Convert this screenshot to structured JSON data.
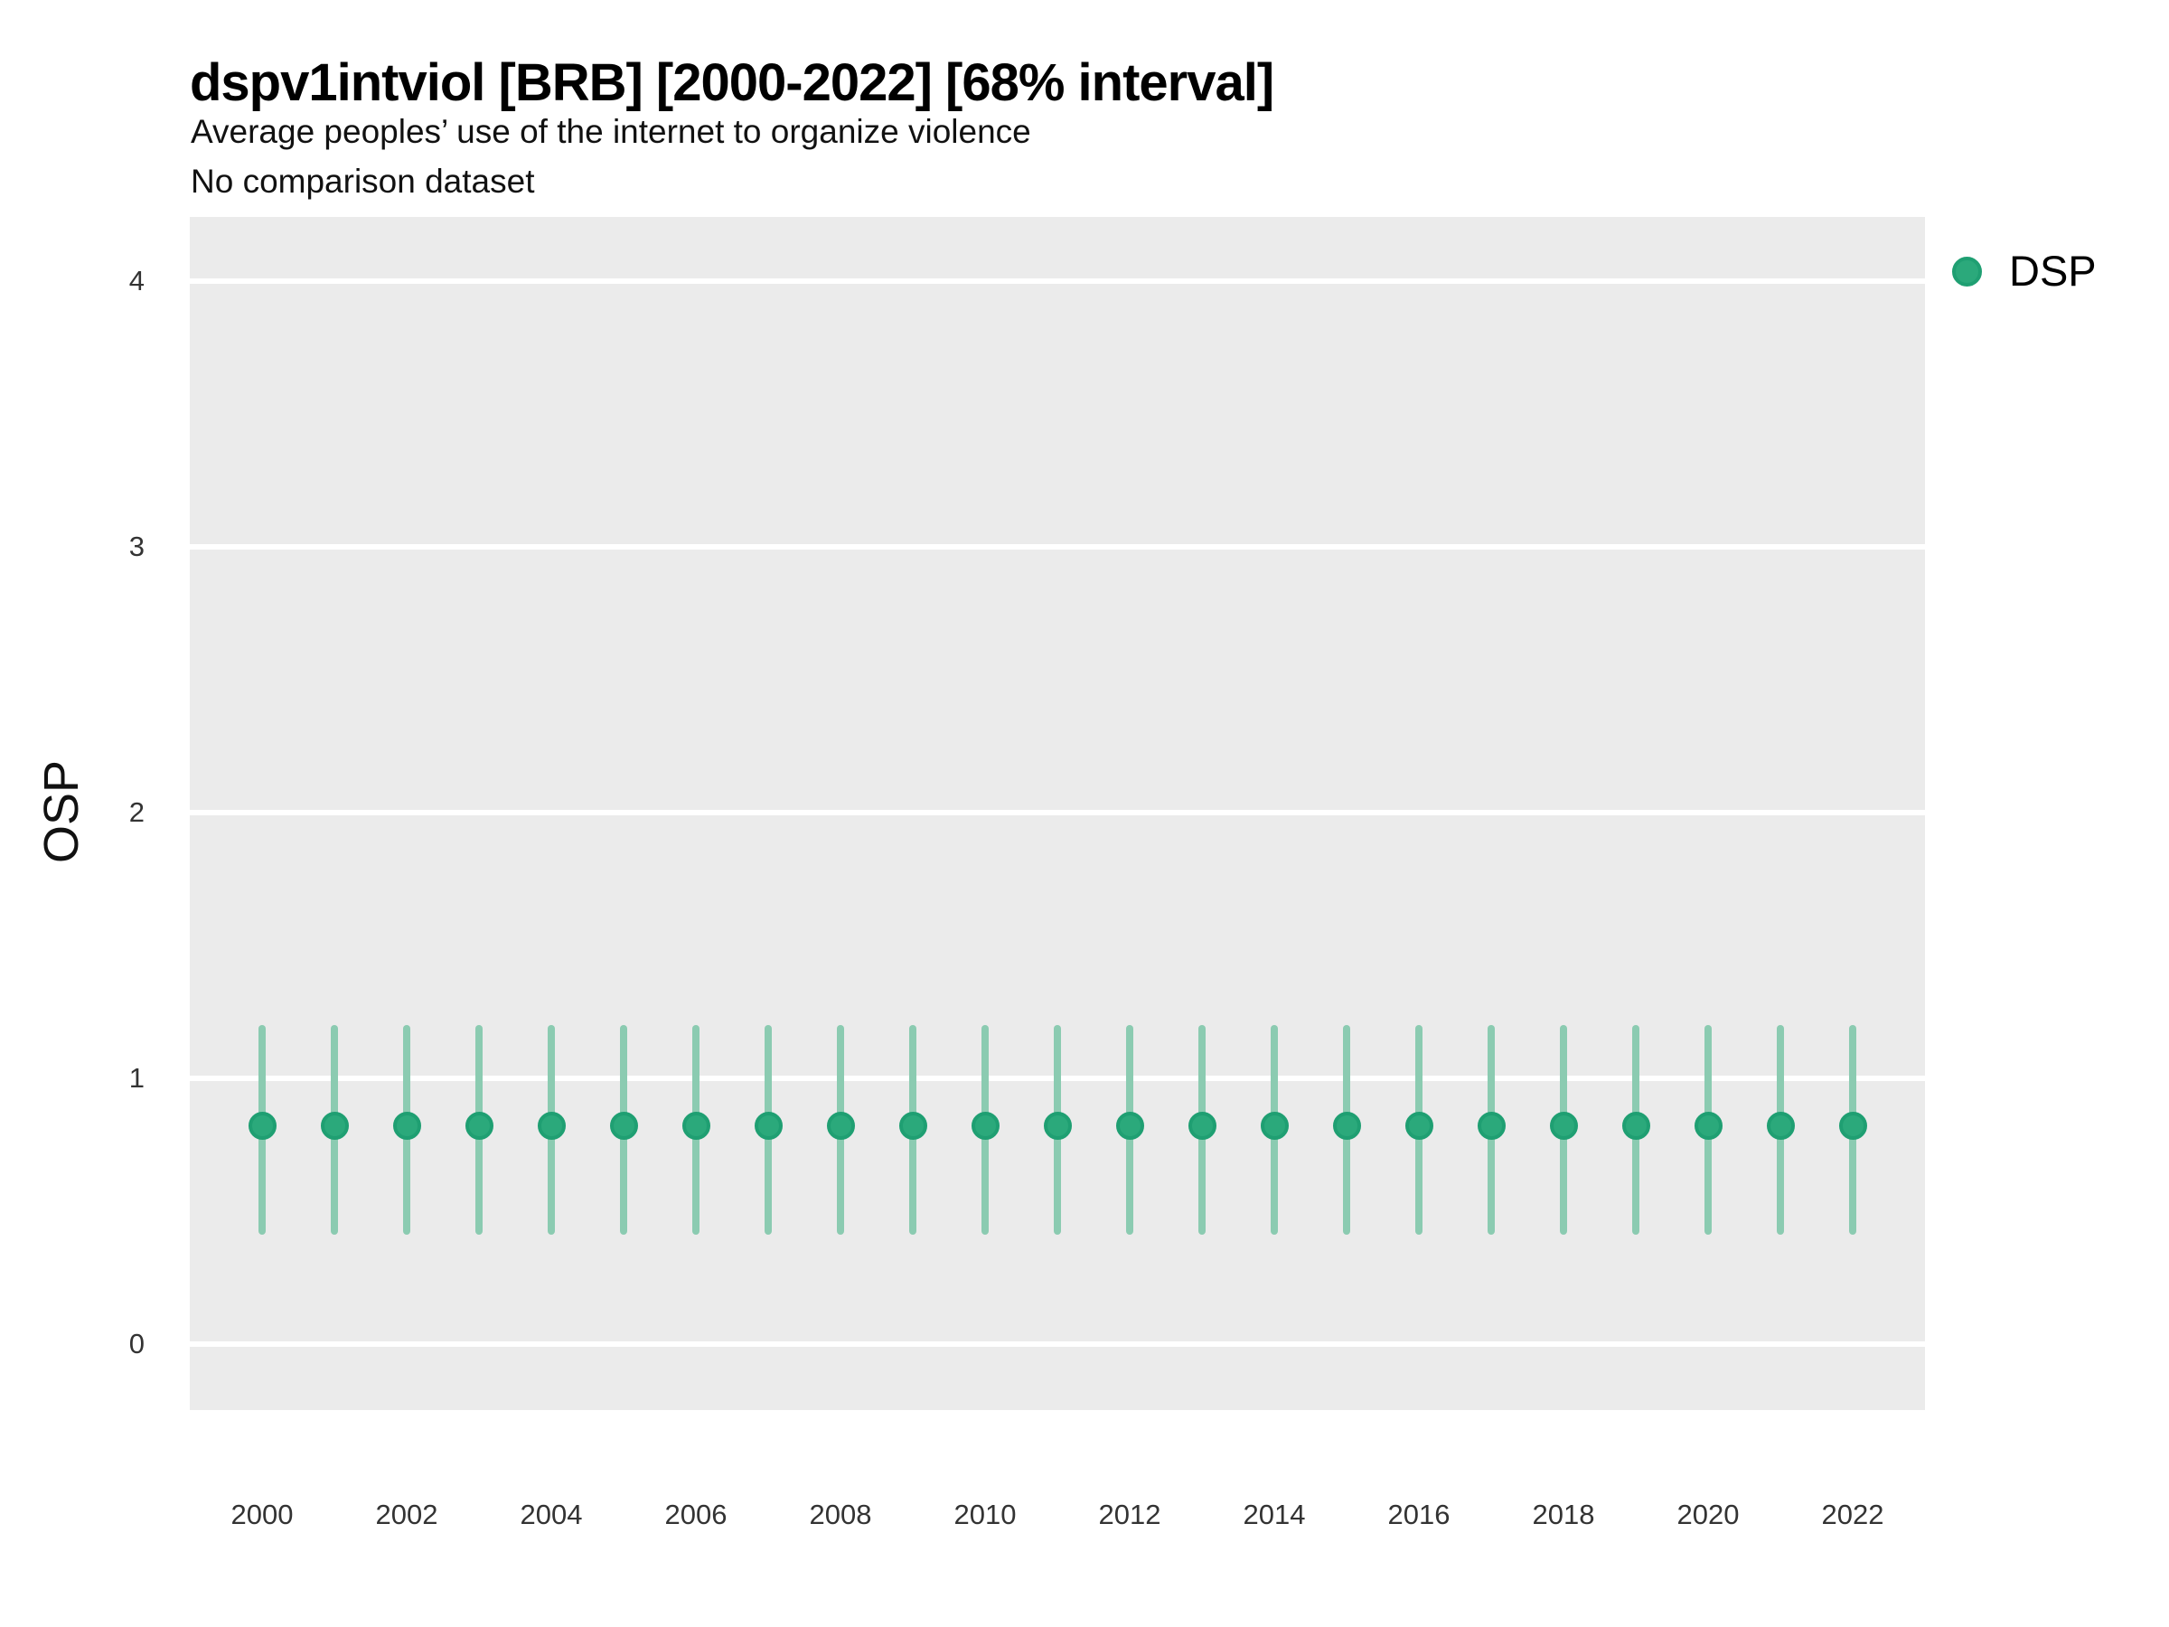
{
  "header": {
    "title": "dspv1intviol [BRB] [2000-2022] [68% interval]",
    "subtitle1": "Average peoples’ use of the internet to organize violence",
    "subtitle2": "No comparison dataset"
  },
  "axes": {
    "y_label": "OSP"
  },
  "legend": {
    "items": [
      {
        "label": "DSP",
        "marker": "circle-icon",
        "fill": "#2ba97b",
        "stroke": "#1f9f72"
      }
    ],
    "position": "right-top"
  },
  "colors": {
    "panel_background": "#ebebeb",
    "grid": "#ffffff",
    "point_fill": "#2ba97b",
    "point_stroke": "#1f9f72",
    "interval_bar": "#8bcbb1",
    "text": "#333333"
  },
  "chart_data": {
    "type": "scatter",
    "title": "dspv1intviol [BRB] [2000-2022] [68% interval]",
    "subtitle": "Average peoples’ use of the internet to organize violence",
    "note": "No comparison dataset",
    "xlabel": "",
    "ylabel": "OSP",
    "interval_level": "68%",
    "ylim": [
      -0.25,
      4.25
    ],
    "yticks": [
      0,
      1,
      2,
      3,
      4
    ],
    "xticks": [
      2000,
      2002,
      2004,
      2006,
      2008,
      2010,
      2012,
      2014,
      2016,
      2018,
      2020,
      2022
    ],
    "grid": "horizontal-major-only",
    "legend_position": "right-top",
    "series": [
      {
        "name": "DSP",
        "x": [
          2000,
          2001,
          2002,
          2003,
          2004,
          2005,
          2006,
          2007,
          2008,
          2009,
          2010,
          2011,
          2012,
          2013,
          2014,
          2015,
          2016,
          2017,
          2018,
          2019,
          2020,
          2021,
          2022
        ],
        "y": [
          0.82,
          0.82,
          0.82,
          0.82,
          0.82,
          0.82,
          0.82,
          0.82,
          0.82,
          0.82,
          0.82,
          0.82,
          0.82,
          0.82,
          0.82,
          0.82,
          0.82,
          0.82,
          0.82,
          0.82,
          0.82,
          0.82,
          0.82
        ],
        "y_lo": [
          0.41,
          0.41,
          0.41,
          0.41,
          0.41,
          0.41,
          0.41,
          0.41,
          0.41,
          0.41,
          0.41,
          0.41,
          0.41,
          0.41,
          0.41,
          0.41,
          0.41,
          0.41,
          0.41,
          0.41,
          0.41,
          0.41,
          0.41
        ],
        "y_hi": [
          1.2,
          1.2,
          1.2,
          1.2,
          1.2,
          1.2,
          1.2,
          1.2,
          1.2,
          1.2,
          1.2,
          1.2,
          1.2,
          1.2,
          1.2,
          1.2,
          1.2,
          1.2,
          1.2,
          1.2,
          1.2,
          1.2,
          1.2
        ]
      }
    ]
  }
}
